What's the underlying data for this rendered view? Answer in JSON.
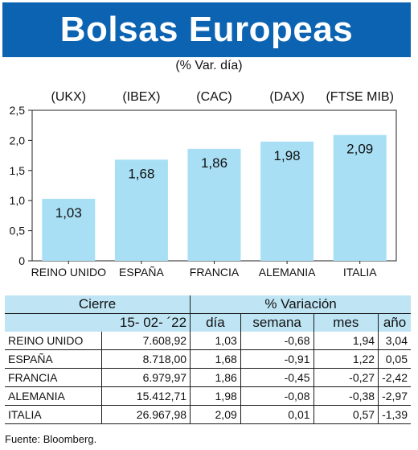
{
  "header": {
    "title": "Bolsas Europeas",
    "subtitle": "(% Var. día)"
  },
  "chart_data": {
    "type": "bar",
    "index_codes": [
      "(UKX)",
      "(IBEX)",
      "(CAC)",
      "(DAX)",
      "(FTSE MIB)"
    ],
    "categories": [
      "REINO UNIDO",
      "ESPAÑA",
      "FRANCIA",
      "ALEMANIA",
      "ITALIA"
    ],
    "values": [
      1.03,
      1.68,
      1.86,
      1.98,
      2.09
    ],
    "value_labels": [
      "1,03",
      "1,68",
      "1,86",
      "1,98",
      "2,09"
    ],
    "ylim": [
      0,
      2.5
    ],
    "yticks": [
      "0",
      "0,5",
      "1,0",
      "1,5",
      "2,0",
      "2,5"
    ],
    "bar_color": "#a8dff5",
    "grid": false
  },
  "table": {
    "headers": {
      "cierre": "Cierre",
      "variacion": "% Variación",
      "date": "15- 02- ´22",
      "dia": "día",
      "semana": "semana",
      "mes": "mes",
      "anio": "año"
    },
    "rows": [
      {
        "country": "REINO UNIDO",
        "cierre": "7.608,92",
        "dia": "1,03",
        "semana": "-0,68",
        "mes": "1,94",
        "anio": "3,04"
      },
      {
        "country": "ESPAÑA",
        "cierre": "8.718,00",
        "dia": "1,68",
        "semana": "-0,91",
        "mes": "1,22",
        "anio": "0,05"
      },
      {
        "country": "FRANCIA",
        "cierre": "6.979,97",
        "dia": "1,86",
        "semana": "-0,45",
        "mes": "-0,27",
        "anio": "-2,42"
      },
      {
        "country": "ALEMANIA",
        "cierre": "15.412,71",
        "dia": "1,98",
        "semana": "-0,08",
        "mes": "-0,38",
        "anio": "-2,97"
      },
      {
        "country": "ITALIA",
        "cierre": "26.967,98",
        "dia": "2,09",
        "semana": "0,01",
        "mes": "0,57",
        "anio": "-1,39"
      }
    ]
  },
  "source": "Fuente: Bloomberg."
}
